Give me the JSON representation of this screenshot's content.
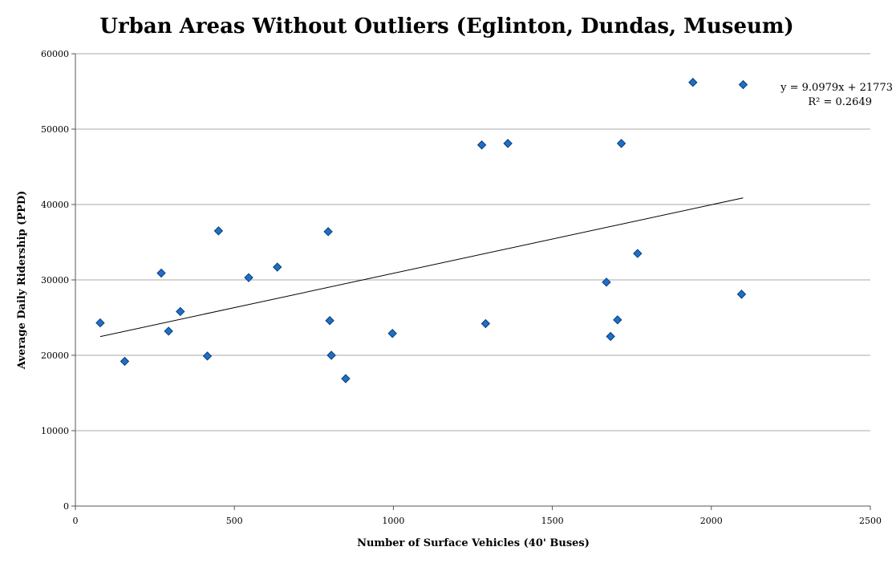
{
  "chart_data": {
    "type": "scatter",
    "title": "Urban Areas Without Outliers (Eglinton, Dundas, Museum)",
    "xlabel": "Number of Surface Vehicles (40' Buses)",
    "ylabel": "Average Daily Ridership (PPD)",
    "xlim": [
      0,
      2500
    ],
    "ylim": [
      0,
      60000
    ],
    "x_ticks": [
      0,
      500,
      1000,
      1500,
      2000,
      2500
    ],
    "y_ticks": [
      0,
      10000,
      20000,
      30000,
      40000,
      50000,
      60000
    ],
    "grid": "horizontal",
    "marker": "diamond",
    "colors": {
      "marker_fill": "#1f6fc6",
      "marker_edge": "#0b3d7a",
      "grid": "#aaaaaa",
      "trendline": "#000000"
    },
    "points": [
      {
        "x": 78,
        "y": 24300
      },
      {
        "x": 155,
        "y": 19200
      },
      {
        "x": 270,
        "y": 30900
      },
      {
        "x": 293,
        "y": 23200
      },
      {
        "x": 330,
        "y": 25800
      },
      {
        "x": 415,
        "y": 19900
      },
      {
        "x": 450,
        "y": 36500
      },
      {
        "x": 545,
        "y": 30300
      },
      {
        "x": 635,
        "y": 31700
      },
      {
        "x": 795,
        "y": 36400
      },
      {
        "x": 800,
        "y": 24600
      },
      {
        "x": 805,
        "y": 20000
      },
      {
        "x": 850,
        "y": 16900
      },
      {
        "x": 997,
        "y": 22900
      },
      {
        "x": 1278,
        "y": 47900
      },
      {
        "x": 1290,
        "y": 24200
      },
      {
        "x": 1360,
        "y": 48100
      },
      {
        "x": 1670,
        "y": 29700
      },
      {
        "x": 1683,
        "y": 22500
      },
      {
        "x": 1705,
        "y": 24700
      },
      {
        "x": 1717,
        "y": 48100
      },
      {
        "x": 1768,
        "y": 33500
      },
      {
        "x": 1942,
        "y": 56200
      },
      {
        "x": 2095,
        "y": 28100
      },
      {
        "x": 2100,
        "y": 55900
      }
    ],
    "trendline": {
      "type": "linear",
      "slope": 9.0979,
      "intercept": 21773,
      "x_range": [
        78,
        2100
      ],
      "equation": "y = 9.0979x + 21773",
      "r_squared": "R² = 0.2649"
    }
  }
}
